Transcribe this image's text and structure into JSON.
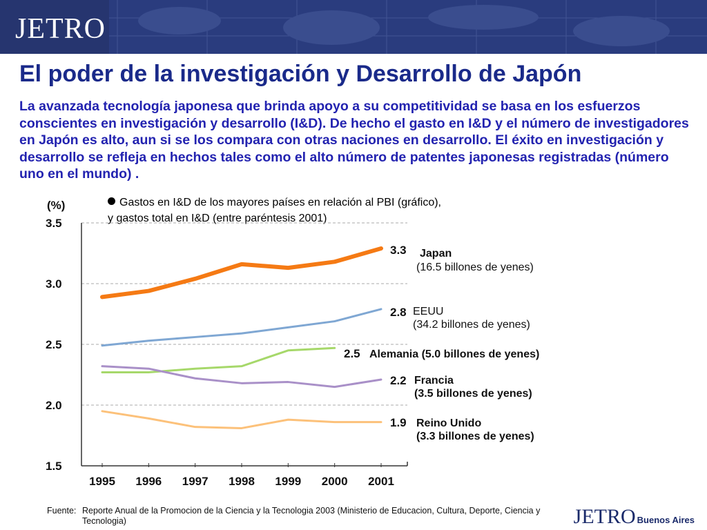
{
  "header": {
    "logo": "JETRO"
  },
  "title": "El poder de la investigación y Desarrollo de Japón",
  "intro": "La avanzada tecnología japonesa  que brinda apoyo a su competitividad se basa en los esfuerzos conscientes en investigación y desarrollo (I&D). De hecho el gasto en I&D  y el número de investigadores en Japón es alto, aun si se los compara con otras naciones en desarrollo. El éxito en investigación y desarrollo se refleja en hechos tales como el alto número de patentes japonesas registradas  (número uno en el mundo) .",
  "bullet": {
    "line1": "Gastos en I&D de los mayores países en relación al PBI (gráfico),",
    "line2": "y gastos total en I&D (entre paréntesis 2001)"
  },
  "source": {
    "label": "Fuente:",
    "text": "Reporte Anual de la Promocion de la Ciencia y la Tecnologia 2003 (Ministerio de Educacion, Cultura, Deporte, Ciencia y Tecnologia)"
  },
  "footer": {
    "logo": "JETRO",
    "city": "Buenos Aires"
  },
  "chart_data": {
    "type": "line",
    "ylabel": "(%)",
    "ylim": [
      1.5,
      3.5
    ],
    "yticks": [
      "3.5",
      "3.0",
      "2.5",
      "2.0",
      "1.5"
    ],
    "categories": [
      "1995",
      "1996",
      "1997",
      "1998",
      "1999",
      "2000",
      "2001"
    ],
    "grid": "dashed horizontal at 2.0, 2.5, 3.0, 3.5",
    "series": [
      {
        "name": "Japan",
        "detail": "(16.5 billones de yenes)",
        "end_label": "3.3",
        "color": "#f57a14",
        "values": [
          2.89,
          2.94,
          3.04,
          3.16,
          3.13,
          3.18,
          3.29
        ]
      },
      {
        "name": "EEUU",
        "detail": "(34.2 billones de yenes)",
        "end_label": "2.8",
        "color": "#7fa7d3",
        "values": [
          2.49,
          2.53,
          2.56,
          2.59,
          2.64,
          2.69,
          2.79
        ]
      },
      {
        "name": "Alemania (5.0 billones de yenes)",
        "detail": "",
        "end_label": "2.5",
        "color": "#a6d86a",
        "values": [
          2.27,
          2.27,
          2.3,
          2.32,
          2.45,
          2.47,
          null
        ]
      },
      {
        "name": "Francia",
        "detail": "(3.5 billones de yenes)",
        "end_label": "2.2",
        "color": "#a990c8",
        "values": [
          2.32,
          2.3,
          2.22,
          2.18,
          2.19,
          2.15,
          2.21
        ]
      },
      {
        "name": "Reino Unido",
        "detail": "(3.3 billones de yenes)",
        "end_label": "1.9",
        "color": "#fcc17a",
        "values": [
          1.95,
          1.89,
          1.82,
          1.81,
          1.88,
          1.86,
          1.86
        ]
      }
    ]
  }
}
